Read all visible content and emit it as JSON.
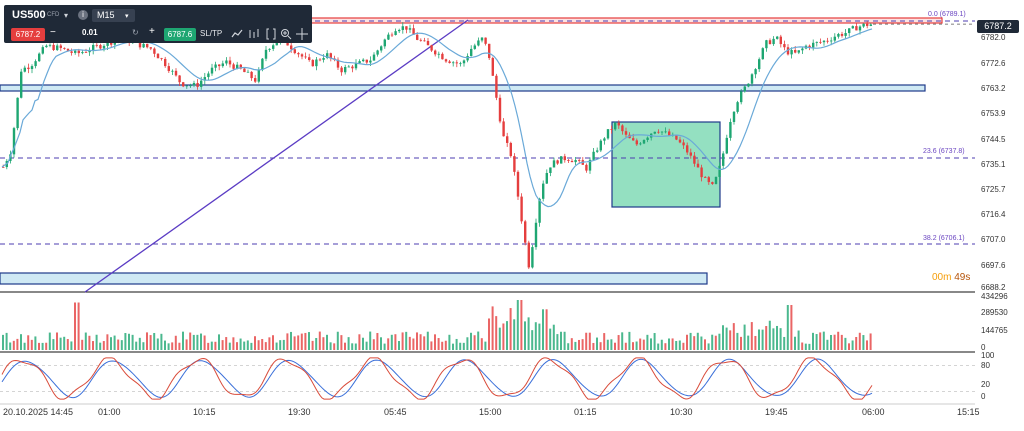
{
  "toolbar": {
    "symbol": "US500",
    "symbol_type": "CFD",
    "symbol_caret": "▾",
    "info_icon": "i",
    "timeframe": "M15",
    "timeframe_caret": "▾",
    "sell_price": "6787.2",
    "qty_minus": "−",
    "quantity": "0.01",
    "qty_spinner": "↻",
    "qty_plus": "+",
    "buy_price": "6787.6",
    "sltp_label": "SL/TP",
    "tools": [
      "chart-line-icon",
      "indicators-icon",
      "bracket-icon",
      "zoom-in-icon",
      "zoom-out-icon",
      "crosshair-icon"
    ]
  },
  "current_price": "6787.2",
  "countdown": {
    "minutes": "00m",
    "seconds": "49s"
  },
  "fib_labels": {
    "f0": "0.0 (6789.1)",
    "f236": "23.6 (6737.8)",
    "f382": "38.2 (6706.1)"
  },
  "price_axis": [
    "6782.0",
    "6772.6",
    "6763.2",
    "6753.9",
    "6744.5",
    "6735.1",
    "6725.7",
    "6716.4",
    "6707.0",
    "6697.6",
    "6688.2"
  ],
  "volume_axis": [
    "434296",
    "289530",
    "144765",
    "0"
  ],
  "osc_axis": [
    "100",
    "80",
    "20",
    "0"
  ],
  "time_axis": [
    "20.10.2025 14:45",
    "01:00",
    "10:15",
    "19:30",
    "05:45",
    "15:00",
    "01:15",
    "10:30",
    "19:45",
    "06:00",
    "15:15"
  ],
  "colors": {
    "bull": "#1ea672",
    "bear": "#e53e3e",
    "ma": "#6aa9d8",
    "fib": "#4c3cb0",
    "zone_fill": "#cfe9f4",
    "zone_stroke": "#1e3a8a",
    "box_fill": "#94e0c1",
    "resistance": "#e53e3e",
    "stoch_k": "#d94b3a",
    "stoch_d": "#3a6fd9",
    "countdown": "#f59e0b"
  }
}
